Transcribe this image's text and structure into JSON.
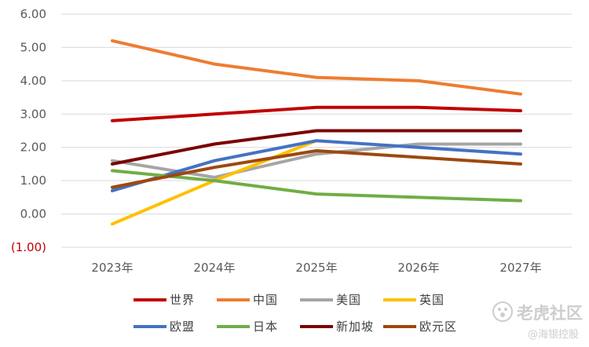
{
  "chart_data": {
    "type": "line",
    "title": "",
    "xlabel": "",
    "ylabel": "",
    "categories": [
      "2023年",
      "2024年",
      "2025年",
      "2026年",
      "2027年"
    ],
    "ylim": [
      -1,
      6
    ],
    "yticks": [
      6,
      5,
      4,
      3,
      2,
      1,
      0,
      -1
    ],
    "ytick_labels": [
      "6.00",
      "5.00",
      "4.00",
      "3.00",
      "2.00",
      "1.00",
      "0.00",
      "(1.00)"
    ],
    "grid": "horizontal",
    "legend_position": "bottom",
    "series": [
      {
        "name": "世界",
        "color": "#c00000",
        "values": [
          2.8,
          3.0,
          3.2,
          3.2,
          3.1
        ]
      },
      {
        "name": "中国",
        "color": "#ed7d31",
        "values": [
          5.2,
          4.5,
          4.1,
          4.0,
          3.6
        ]
      },
      {
        "name": "美国",
        "color": "#a5a5a5",
        "values": [
          1.6,
          1.1,
          1.8,
          2.1,
          2.1
        ]
      },
      {
        "name": "英国",
        "color": "#ffc000",
        "values": [
          -0.3,
          1.0,
          2.2,
          null,
          null
        ]
      },
      {
        "name": "欧盟",
        "color": "#4472c4",
        "values": [
          0.7,
          1.6,
          2.2,
          2.0,
          1.8
        ]
      },
      {
        "name": "日本",
        "color": "#70ad47",
        "values": [
          1.3,
          1.0,
          0.6,
          0.5,
          0.4
        ]
      },
      {
        "name": "新加坡",
        "color": "#7b0000",
        "values": [
          1.5,
          2.1,
          2.5,
          2.5,
          2.5
        ]
      },
      {
        "name": "欧元区",
        "color": "#9e480e",
        "values": [
          0.8,
          1.4,
          1.9,
          1.7,
          1.5
        ]
      }
    ]
  },
  "watermark": {
    "brand": "老虎社区",
    "sub": "@海银控股",
    "color": "#c8c8c8",
    "icon": "tiger-paw-icon"
  }
}
